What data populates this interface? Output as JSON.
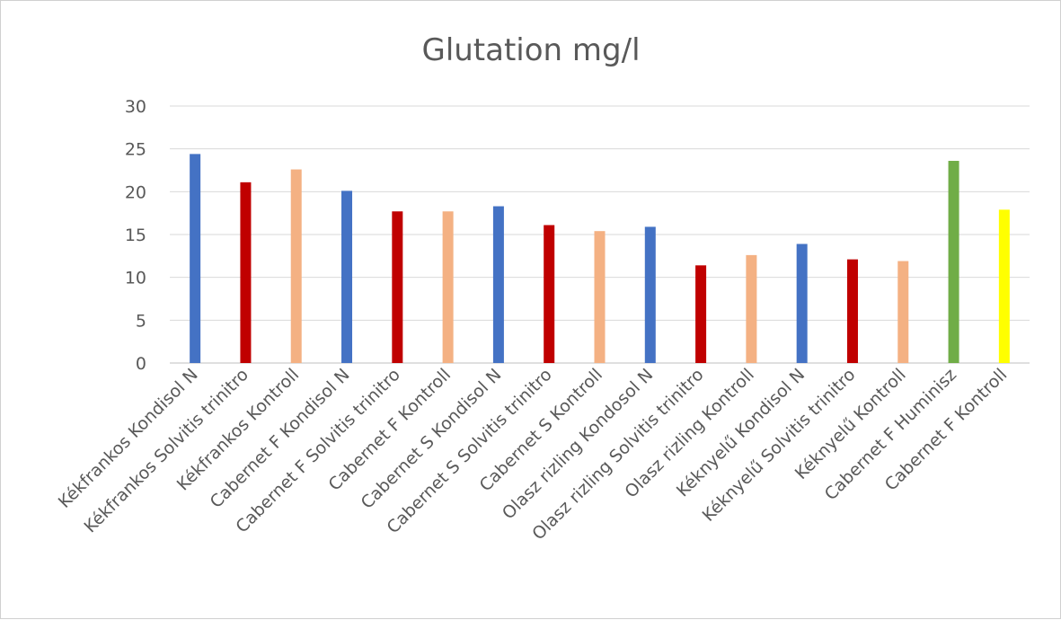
{
  "chart_data": {
    "type": "bar",
    "title": "Glutation mg/l",
    "xlabel": "",
    "ylabel": "",
    "ylim": [
      0,
      30
    ],
    "yticks": [
      0,
      5,
      10,
      15,
      20,
      25,
      30
    ],
    "grid": true,
    "legend": "none",
    "categories": [
      "Kékfrankos Kondisol N",
      "Kékfrankos Solvitis trinitro",
      "Kékfrankos Kontroll",
      "Cabernet F Kondisol N",
      "Cabernet F Solvitis trinitro",
      "Cabernet F Kontroll",
      "Cabernet S Kondisol N",
      "Cabernet S Solvitis trinitro",
      "Cabernet S Kontroll",
      "Olasz rizling Kondosol N",
      "Olasz rizling Solvitis trinitro",
      "Olasz rizling Kontroll",
      "Kéknyelű Kondisol N",
      "Kéknyelű Solvitis trinitro",
      "Kéknyelű Kontroll",
      "Cabernet F Huminisz",
      "Cabernet F Kontroll"
    ],
    "values": [
      24.4,
      21.1,
      22.6,
      20.1,
      17.7,
      17.7,
      18.3,
      16.1,
      15.4,
      15.9,
      11.4,
      12.6,
      13.9,
      12.1,
      11.9,
      23.6,
      17.9
    ],
    "colors": [
      "#4472C4",
      "#C00000",
      "#F4B183",
      "#4472C4",
      "#C00000",
      "#F4B183",
      "#4472C4",
      "#C00000",
      "#F4B183",
      "#4472C4",
      "#C00000",
      "#F4B183",
      "#4472C4",
      "#C00000",
      "#F4B183",
      "#70AD47",
      "#FFFF00"
    ]
  }
}
